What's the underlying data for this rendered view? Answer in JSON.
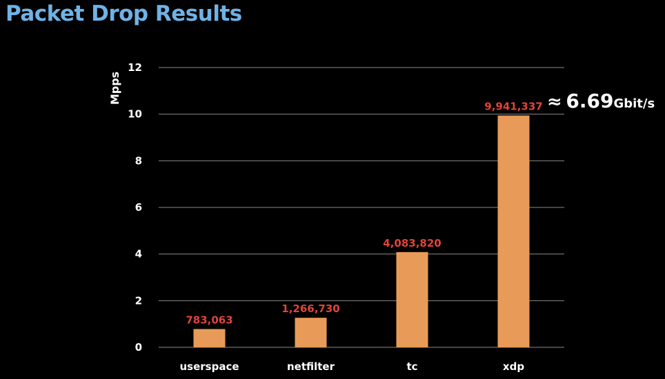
{
  "slide": {
    "title": "Packet Drop Results"
  },
  "callout": {
    "approx_symbol": "≈",
    "value": "6.69",
    "unit": "Gbit/s"
  },
  "colors": {
    "background": "#000000",
    "title": "#6fb2e6",
    "bar": "#e89b58",
    "data_label": "#e0443a",
    "grid": "#8a8a8a",
    "text": "#ffffff"
  },
  "chart_data": {
    "type": "bar",
    "title": "",
    "xlabel": "",
    "ylabel": "Mpps",
    "categories": [
      "userspace",
      "netfilter",
      "tc",
      "xdp"
    ],
    "values": [
      0.783063,
      1.26673,
      4.08382,
      9.941337
    ],
    "data_labels": [
      "783,063",
      "1,266,730",
      "4,083,820",
      "9,941,337"
    ],
    "ylim": [
      0,
      12
    ],
    "yticks": [
      0,
      2,
      4,
      6,
      8,
      10,
      12
    ],
    "grid": true,
    "legend": "none"
  }
}
